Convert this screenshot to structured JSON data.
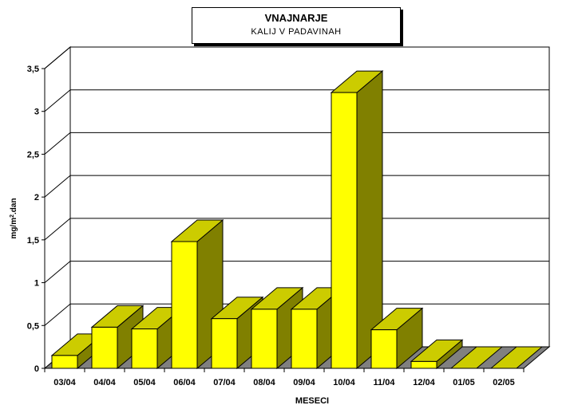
{
  "chart_data": {
    "type": "bar",
    "title": "VNAJNARJE",
    "subtitle": "KALIJ V PADAVINAH",
    "xlabel": "MESECI",
    "ylabel": "mg/m2.dan",
    "ylabel_main": "mg/m",
    "ylabel_sup": "2",
    "ylabel_tail": ".dan",
    "categories": [
      "03/04",
      "04/04",
      "05/04",
      "06/04",
      "07/04",
      "08/04",
      "09/04",
      "10/04",
      "11/04",
      "12/04",
      "01/05",
      "02/05"
    ],
    "values": [
      0.15,
      0.48,
      0.46,
      1.48,
      0.58,
      0.69,
      0.69,
      3.22,
      0.45,
      0.08,
      0,
      0
    ],
    "ylim": [
      0,
      3.5
    ],
    "yticks": [
      "0",
      "0,5",
      "1",
      "1,5",
      "2",
      "2,5",
      "3",
      "3,5"
    ],
    "grid": true,
    "colors": {
      "bar_front": "#ffff00",
      "bar_top": "#cccc00",
      "bar_side": "#808000",
      "floor": "#808080"
    }
  }
}
